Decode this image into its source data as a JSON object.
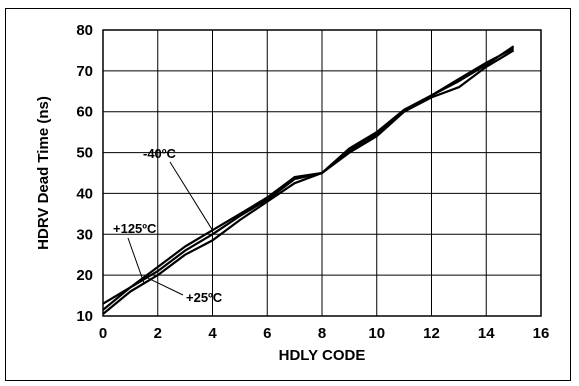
{
  "chart_data": {
    "type": "line",
    "title": "",
    "xlabel": "HDLY CODE",
    "ylabel": "HDRV Dead Time (ns)",
    "xlim": [
      0,
      16
    ],
    "ylim": [
      10,
      80
    ],
    "xticks": [
      0,
      2,
      4,
      6,
      8,
      10,
      12,
      14,
      16
    ],
    "yticks": [
      10,
      20,
      30,
      40,
      50,
      60,
      70,
      80
    ],
    "grid": true,
    "legend": "none",
    "series_color": "#000000",
    "x": [
      0,
      1,
      2,
      3,
      4,
      5,
      6,
      7,
      8,
      9,
      10,
      11,
      12,
      13,
      14,
      15
    ],
    "series": [
      {
        "name": "-40ºC",
        "values": [
          13.0,
          17.0,
          22.0,
          27.0,
          31.0,
          35.0,
          39.0,
          44.0,
          45.0,
          51.0,
          55.0,
          60.5,
          64.0,
          68.0,
          72.0,
          75.5
        ]
      },
      {
        "name": "+125ºC",
        "values": [
          10.5,
          16.0,
          20.0,
          25.0,
          28.5,
          33.5,
          38.0,
          42.5,
          45.0,
          50.0,
          54.0,
          60.0,
          63.5,
          66.0,
          71.0,
          75.0
        ]
      },
      {
        "name": "+25ºC",
        "values": [
          11.5,
          17.0,
          21.0,
          26.0,
          30.0,
          34.5,
          38.5,
          43.5,
          45.0,
          50.5,
          54.5,
          60.0,
          64.0,
          67.5,
          71.5,
          76.0
        ]
      }
    ],
    "annotations": [
      {
        "text": "-40ºC",
        "series": "-40ºC"
      },
      {
        "text": "+125ºC",
        "series": "+125ºC"
      },
      {
        "text": "+25ºC",
        "series": "+25ºC"
      }
    ]
  }
}
